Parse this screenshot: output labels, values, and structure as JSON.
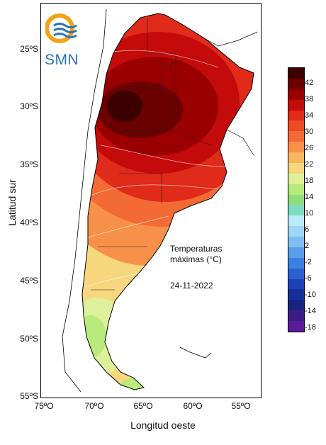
{
  "map": {
    "title_line1": "Temperaturas",
    "title_line2": "máximas (°C)",
    "date": "24-11-2022",
    "logo_text": "SMN",
    "y_axis_title": "Latitud sur",
    "x_axis_title": "Longitud oeste",
    "lat_labels": [
      "25ºS",
      "30ºS",
      "35ºS",
      "40ºS",
      "45ºS",
      "50ºS",
      "55ºS"
    ],
    "lon_labels": [
      "75ºO",
      "70ºO",
      "65ºO",
      "60ºO",
      "55ºO"
    ]
  },
  "legend": {
    "labels": [
      "42",
      "38",
      "34",
      "30",
      "26",
      "22",
      "18",
      "14",
      "10",
      "6",
      "2",
      "-2",
      "-6",
      "-10",
      "-14",
      "-18"
    ],
    "colors": [
      "#3d0000",
      "#6b0000",
      "#9b0000",
      "#c40a0a",
      "#e02a1a",
      "#ee4a24",
      "#f46a34",
      "#f7914a",
      "#f8b65c",
      "#f6d77d",
      "#dff09a",
      "#b8ea7c",
      "#8ede7e",
      "#7fdcc2",
      "#b9ecf8",
      "#9fd8f6",
      "#7fbef0",
      "#5a9de8",
      "#3d7fe0",
      "#2b60d0",
      "#1c42b8",
      "#16309a",
      "#1a2380",
      "#3b1d88",
      "#5a1a9a"
    ]
  }
}
